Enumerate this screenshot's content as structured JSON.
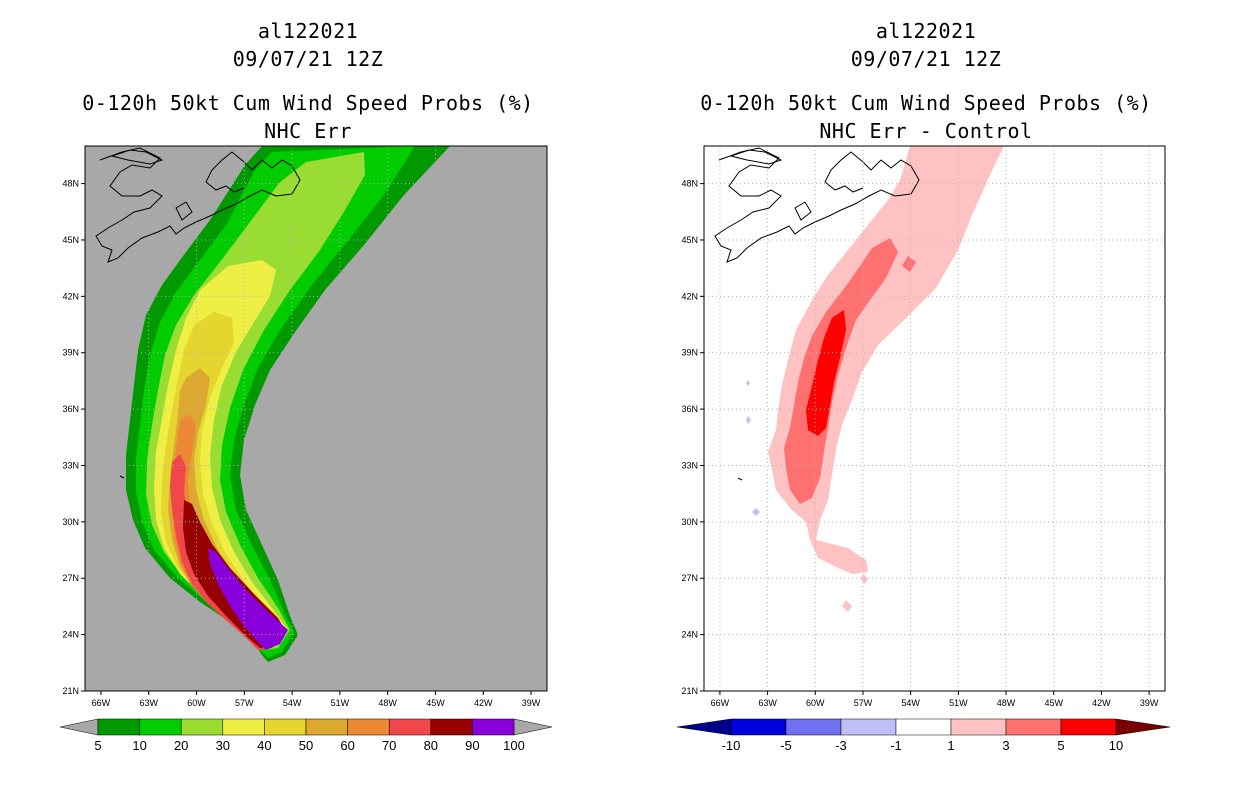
{
  "colors": {
    "land_left": "#a8a8a8",
    "background": "#ffffff",
    "grid": "#b4b4b4",
    "coast": "#000000"
  },
  "left_panel": {
    "storm_id": "al122021",
    "datetime": "09/07/21 12Z",
    "title": "0-120h 50kt Cum Wind Speed Probs (%)",
    "subtitle": "NHC Err"
  },
  "right_panel": {
    "storm_id": "al122021",
    "datetime": "09/07/21 12Z",
    "title": "0-120h 50kt Cum Wind Speed Probs (%)",
    "subtitle": "NHC Err - Control"
  },
  "chart_data": [
    {
      "type": "heatmap",
      "title": "0-120h 50kt Cum Wind Speed Probs (%)",
      "subtitle": "NHC Err",
      "x_ticks": [
        "66W",
        "63W",
        "60W",
        "57W",
        "54W",
        "51W",
        "48W",
        "45W",
        "42W",
        "39W"
      ],
      "y_ticks": [
        "48N",
        "45N",
        "42N",
        "39N",
        "36N",
        "33N",
        "30N",
        "27N",
        "24N",
        "21N"
      ],
      "lon_range": [
        -67,
        -38
      ],
      "lat_range": [
        21,
        50
      ],
      "grid": true,
      "colorbar": {
        "labels": [
          "5",
          "10",
          "20",
          "30",
          "40",
          "50",
          "60",
          "70",
          "80",
          "90",
          "100"
        ],
        "colors": [
          "#009a00",
          "#00cc00",
          "#99dd33",
          "#eeee44",
          "#e4d62e",
          "#dca830",
          "#ec8833",
          "#f04848",
          "#960000",
          "#8a00dd"
        ],
        "end_colors": [
          "#a8a8a8",
          "#a8a8a8"
        ]
      }
    },
    {
      "type": "heatmap",
      "title": "0-120h 50kt Cum Wind Speed Probs (%)",
      "subtitle": "NHC Err - Control",
      "x_ticks": [
        "66W",
        "63W",
        "60W",
        "57W",
        "54W",
        "51W",
        "48W",
        "45W",
        "42W",
        "39W"
      ],
      "y_ticks": [
        "48N",
        "45N",
        "42N",
        "39N",
        "36N",
        "33N",
        "30N",
        "27N",
        "24N",
        "21N"
      ],
      "lon_range": [
        -67,
        -38
      ],
      "lat_range": [
        21,
        50
      ],
      "grid": true,
      "colorbar": {
        "labels": [
          "-10",
          "-5",
          "-3",
          "-1",
          "1",
          "3",
          "5",
          "10"
        ],
        "colors": [
          "#0000dd",
          "#7070f0",
          "#c0c0f8",
          "#ffffff",
          "#ffc2c2",
          "#ff7070",
          "#ff0000"
        ],
        "end_colors": [
          "#00008a",
          "#7a0000"
        ]
      }
    }
  ]
}
